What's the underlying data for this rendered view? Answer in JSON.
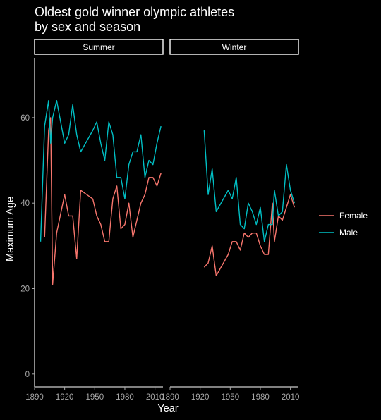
{
  "chart_data": {
    "type": "line",
    "title_line1": "Oldest gold winner olympic athletes",
    "title_line2": "by sex and season",
    "xlabel": "Year",
    "ylabel": "Maximum Age",
    "ylim": [
      -3,
      74
    ],
    "yticks": [
      0,
      20,
      40,
      60
    ],
    "xlim": [
      1890,
      2018
    ],
    "xticks": [
      1890,
      1920,
      1950,
      1980,
      2010
    ],
    "legend_position": "right",
    "facets": [
      {
        "label": "Summer",
        "series": [
          {
            "name": "Female",
            "color": "#F8766D",
            "points": [
              [
                1900,
                32
              ],
              [
                1904,
                57
              ],
              [
                1906,
                60
              ],
              [
                1908,
                21
              ],
              [
                1912,
                33
              ],
              [
                1920,
                42
              ],
              [
                1924,
                37
              ],
              [
                1928,
                37
              ],
              [
                1932,
                27
              ],
              [
                1936,
                43
              ],
              [
                1948,
                41
              ],
              [
                1952,
                37
              ],
              [
                1956,
                35
              ],
              [
                1960,
                31
              ],
              [
                1964,
                31
              ],
              [
                1968,
                41
              ],
              [
                1972,
                44
              ],
              [
                1976,
                34
              ],
              [
                1980,
                35
              ],
              [
                1984,
                40
              ],
              [
                1988,
                32
              ],
              [
                1992,
                36
              ],
              [
                1996,
                40
              ],
              [
                2000,
                42
              ],
              [
                2004,
                46
              ],
              [
                2008,
                46
              ],
              [
                2012,
                44
              ],
              [
                2016,
                47
              ]
            ]
          },
          {
            "name": "Male",
            "color": "#00BFC4",
            "points": [
              [
                1896,
                31
              ],
              [
                1900,
                58
              ],
              [
                1904,
                64
              ],
              [
                1906,
                54
              ],
              [
                1908,
                60
              ],
              [
                1912,
                64
              ],
              [
                1920,
                54
              ],
              [
                1924,
                56
              ],
              [
                1928,
                63
              ],
              [
                1932,
                56
              ],
              [
                1936,
                52
              ],
              [
                1948,
                57
              ],
              [
                1952,
                59
              ],
              [
                1956,
                54
              ],
              [
                1960,
                50
              ],
              [
                1964,
                59
              ],
              [
                1968,
                56
              ],
              [
                1972,
                46
              ],
              [
                1976,
                46
              ],
              [
                1980,
                41
              ],
              [
                1984,
                49
              ],
              [
                1988,
                52
              ],
              [
                1992,
                52
              ],
              [
                1996,
                56
              ],
              [
                2000,
                46
              ],
              [
                2004,
                50
              ],
              [
                2008,
                49
              ],
              [
                2012,
                54
              ],
              [
                2016,
                58
              ]
            ]
          }
        ]
      },
      {
        "label": "Winter",
        "series": [
          {
            "name": "Female",
            "color": "#F8766D",
            "points": [
              [
                1924,
                25
              ],
              [
                1928,
                26
              ],
              [
                1932,
                30
              ],
              [
                1936,
                23
              ],
              [
                1948,
                28
              ],
              [
                1952,
                31
              ],
              [
                1956,
                31
              ],
              [
                1960,
                29
              ],
              [
                1964,
                33
              ],
              [
                1968,
                32
              ],
              [
                1972,
                33
              ],
              [
                1976,
                33
              ],
              [
                1980,
                30
              ],
              [
                1984,
                28
              ],
              [
                1988,
                28
              ],
              [
                1992,
                40
              ],
              [
                1994,
                31
              ],
              [
                1998,
                37
              ],
              [
                2002,
                36
              ],
              [
                2006,
                39
              ],
              [
                2010,
                42
              ],
              [
                2014,
                39
              ]
            ]
          },
          {
            "name": "Male",
            "color": "#00BFC4",
            "points": [
              [
                1924,
                57
              ],
              [
                1928,
                42
              ],
              [
                1932,
                48
              ],
              [
                1936,
                38
              ],
              [
                1948,
                43
              ],
              [
                1952,
                41
              ],
              [
                1956,
                46
              ],
              [
                1960,
                35
              ],
              [
                1964,
                34
              ],
              [
                1968,
                40
              ],
              [
                1972,
                38
              ],
              [
                1976,
                35
              ],
              [
                1980,
                39
              ],
              [
                1984,
                31
              ],
              [
                1988,
                35
              ],
              [
                1992,
                35
              ],
              [
                1994,
                43
              ],
              [
                1998,
                37
              ],
              [
                2002,
                38
              ],
              [
                2006,
                49
              ],
              [
                2010,
                43
              ],
              [
                2014,
                40
              ]
            ]
          }
        ]
      }
    ]
  }
}
